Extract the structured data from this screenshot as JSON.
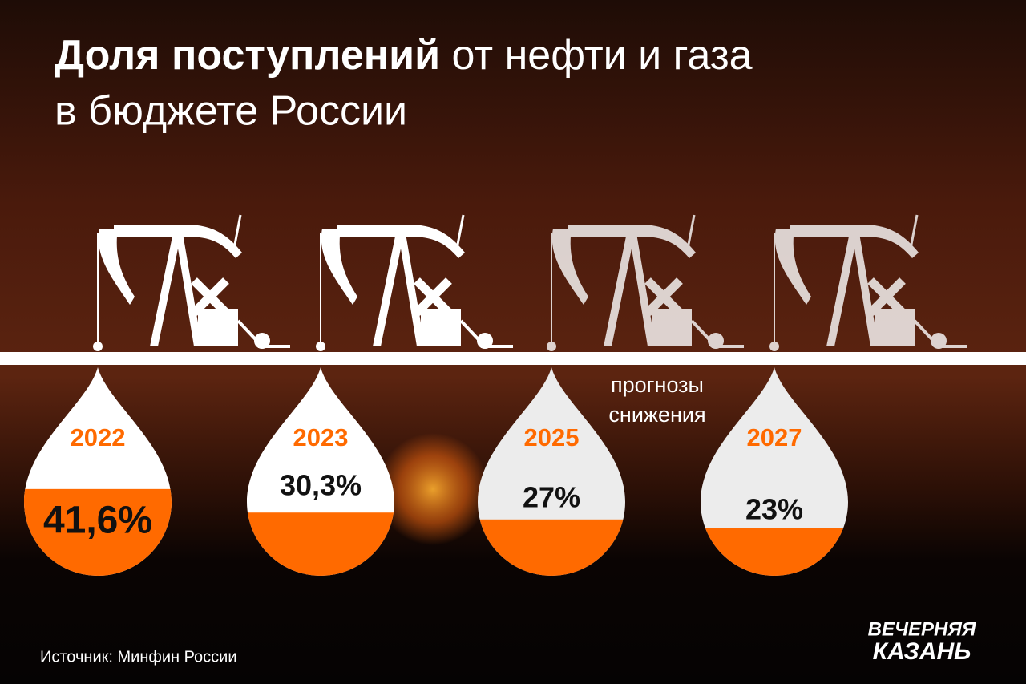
{
  "chart_data": {
    "type": "drop",
    "title": {
      "bold": "Доля поступлений",
      "rest": "от нефти и газа",
      "line2": "в бюджете России"
    },
    "categories": [
      "2022",
      "2023",
      "2025",
      "2027"
    ],
    "values": [
      41.6,
      30.3,
      27,
      23
    ],
    "value_labels": [
      "41,6%",
      "30,3%",
      "27%",
      "23%"
    ],
    "ylim": [
      0,
      100
    ],
    "color": "#ff6a00",
    "annotation": [
      "прогнозы",
      "снижения"
    ],
    "source": "Источник: Минфин России",
    "logo": [
      "ВЕЧЕРНЯЯ",
      "КАЗАНЬ"
    ]
  }
}
